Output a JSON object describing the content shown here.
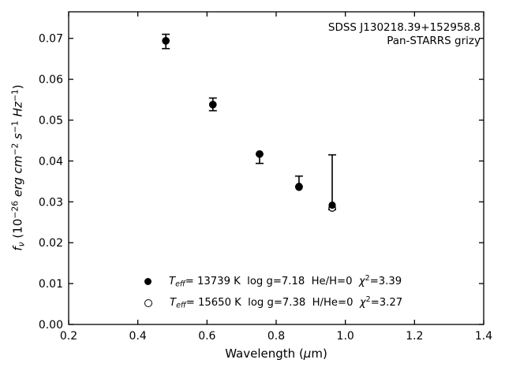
{
  "figure": {
    "background": "#ffffff",
    "ink_color": "#000000",
    "annotation": {
      "line1": "SDSS J130218.39+152958.8",
      "line2": "Pan-STARRS grizy"
    },
    "xlabel_parts": [
      {
        "text": "Wavelength ("
      },
      {
        "text": "μ",
        "style": "italic"
      },
      {
        "text": "m)"
      }
    ],
    "ylabel_parts": [
      {
        "text": "f",
        "style": "italic"
      },
      {
        "text": "ν",
        "style": "italic-sub"
      },
      {
        "text": " (10"
      },
      {
        "text": "−26",
        "style": "sup"
      },
      {
        "text": " erg ",
        "style": "italic"
      },
      {
        "text": "cm",
        "style": "italic"
      },
      {
        "text": "−2",
        "style": "sup"
      },
      {
        "text": " "
      },
      {
        "text": "s",
        "style": "italic"
      },
      {
        "text": "−1",
        "style": "sup"
      },
      {
        "text": " "
      },
      {
        "text": "Hz",
        "style": "italic"
      },
      {
        "text": "−1",
        "style": "sup"
      },
      {
        "text": ")"
      }
    ],
    "legend": {
      "entries": [
        {
          "marker": "filled-circle-icon",
          "parts": [
            {
              "text": "T",
              "style": "italic"
            },
            {
              "text": "eff",
              "style": "italic-sub"
            },
            {
              "text": "= 13739 K  log g=7.18  He/H=0  "
            },
            {
              "text": "χ",
              "style": "italic"
            },
            {
              "text": "2",
              "style": "sup"
            },
            {
              "text": "=3.39"
            }
          ]
        },
        {
          "marker": "open-circle-icon",
          "parts": [
            {
              "text": "T",
              "style": "italic"
            },
            {
              "text": "eff",
              "style": "italic-sub"
            },
            {
              "text": "= 15650 K  log g=7.38  H/He=0  "
            },
            {
              "text": "χ",
              "style": "italic"
            },
            {
              "text": "2",
              "style": "sup"
            },
            {
              "text": "=3.27"
            }
          ]
        }
      ]
    }
  },
  "chart_data": {
    "type": "scatter",
    "title": "",
    "xlabel": "Wavelength (μm)",
    "ylabel": "f_nu (10^-26 erg cm^-2 s^-1 Hz^-1)",
    "xlim": [
      0.2,
      1.4
    ],
    "ylim": [
      0,
      0.0765
    ],
    "grid": false,
    "tick_direction": "in",
    "tick_sides": [
      "bottom",
      "top",
      "left",
      "right"
    ],
    "xticks": {
      "values": [
        0.2,
        0.4,
        0.6,
        0.8,
        1.0,
        1.2,
        1.4
      ],
      "labels": [
        "0.2",
        "0.4",
        "0.6",
        "0.8",
        "1.0",
        "1.2",
        "1.4"
      ]
    },
    "yticks": {
      "values": [
        0.0,
        0.01,
        0.02,
        0.03,
        0.04,
        0.05,
        0.06,
        0.07
      ],
      "labels": [
        "0.00",
        "0.01",
        "0.02",
        "0.03",
        "0.04",
        "0.05",
        "0.06",
        "0.07"
      ]
    },
    "annotations": [
      "SDSS J130218.39+152958.8",
      "Pan-STARRS grizy"
    ],
    "legend_position": "lower-center inside axes",
    "series": [
      {
        "name": "Teff=13739 K, log g=7.18, He/H=0, chi2=3.39",
        "marker": "filled-circle",
        "color": "#000000",
        "points": [
          {
            "band": "g",
            "x": 0.481,
            "y": 0.0694,
            "bar_hi": 0.071,
            "bar_lo": 0.0675
          },
          {
            "band": "r",
            "x": 0.617,
            "y": 0.0538,
            "bar_hi": 0.0554,
            "bar_lo": 0.0523
          },
          {
            "band": "i",
            "x": 0.752,
            "y": 0.0417,
            "bar_hi": 0.0417,
            "bar_lo": 0.0394
          },
          {
            "band": "z",
            "x": 0.866,
            "y": 0.0338,
            "bar_hi": 0.0363,
            "bar_lo": 0.0338
          },
          {
            "band": "y",
            "x": 0.962,
            "y": 0.0292,
            "bar_hi": 0.0415,
            "bar_lo": 0.0281
          }
        ]
      },
      {
        "name": "Teff=15650 K, log g=7.38, H/He=0, chi2=3.27",
        "marker": "open-circle",
        "color": "#000000",
        "note": "mostly hidden behind filled markers; visibly offset at y band",
        "points": [
          {
            "band": "g",
            "x": 0.481,
            "y": 0.0694
          },
          {
            "band": "r",
            "x": 0.617,
            "y": 0.0538
          },
          {
            "band": "i",
            "x": 0.752,
            "y": 0.0417
          },
          {
            "band": "z",
            "x": 0.866,
            "y": 0.0336
          },
          {
            "band": "y",
            "x": 0.962,
            "y": 0.0285
          }
        ]
      }
    ]
  }
}
